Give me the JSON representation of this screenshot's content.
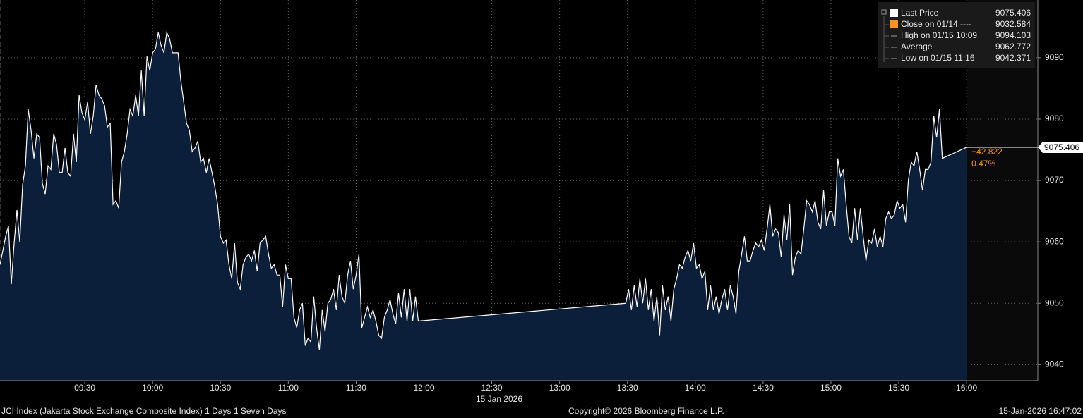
{
  "chart_data": {
    "type": "area",
    "x": [
      532.5,
      533.75,
      535,
      536.25,
      537.5,
      538.75,
      540,
      541.25,
      542.5,
      543.75,
      545,
      546.25,
      547.5,
      548.75,
      550,
      551.25,
      552.5,
      553.75,
      555,
      556.25,
      557.5,
      558.75,
      560,
      561.25,
      562.5,
      563.75,
      565,
      566.25,
      567.5,
      568.75,
      570,
      571.25,
      572.5,
      573.75,
      575,
      576.25,
      577.5,
      578.75,
      580,
      581.25,
      582.5,
      583.75,
      585,
      586.25,
      587.5,
      588.75,
      590,
      591.25,
      592.5,
      593.75,
      595,
      596.25,
      597.5,
      598.75,
      600,
      601.25,
      602.5,
      603.75,
      605,
      606.25,
      607.5,
      608.75,
      610,
      611.25,
      612.5,
      613.75,
      615,
      616.25,
      617.5,
      618.75,
      620,
      621.25,
      622.5,
      623.75,
      625,
      626.25,
      627.5,
      628.75,
      630,
      631.25,
      632.5,
      633.75,
      635,
      636.25,
      637.5,
      638.75,
      640,
      641.25,
      642.5,
      643.75,
      645,
      646.25,
      647.5,
      648.75,
      650,
      651.25,
      652.5,
      653.75,
      655,
      656.25,
      657.5,
      658.75,
      660,
      661.25,
      662.5,
      663.75,
      665,
      666.25,
      667.5,
      668.75,
      670,
      671.25,
      672.5,
      673.75,
      675,
      676.25,
      677.5,
      678.75,
      680,
      681.25,
      682.5,
      683.75,
      685,
      686.25,
      687.5,
      688.75,
      690,
      691.25,
      692.5,
      693.75,
      695,
      696.25,
      697.5,
      698.75,
      700,
      701.25,
      702.5,
      703.75,
      705,
      706.25,
      707.5,
      708.75,
      710,
      711.25,
      712.5,
      713.75,
      715,
      716.25,
      717.5,
      809.25,
      810.5,
      811.75,
      813,
      814.25,
      815.5,
      816.75,
      818,
      819.25,
      820.5,
      821.75,
      823,
      824.25,
      825.5,
      826.75,
      828,
      829.25,
      830.5,
      831.75,
      833,
      834.25,
      835.5,
      836.75,
      838,
      839.25,
      840.5,
      841.75,
      843,
      844.25,
      845.5,
      846.75,
      848,
      849.25,
      850.5,
      851.75,
      853,
      854.25,
      855.5,
      856.75,
      858,
      859.25,
      860.5,
      861.75,
      863,
      864.25,
      865.5,
      866.75,
      868,
      869.25,
      870.5,
      871.75,
      873,
      874.25,
      875.5,
      876.75,
      878,
      879.25,
      880.5,
      881.75,
      883,
      884.25,
      885.5,
      886.75,
      888,
      889.25,
      890.5,
      891.75,
      893,
      894.25,
      895.5,
      896.75,
      898,
      899.25,
      900.5,
      901.75,
      903,
      904.25,
      905.5,
      906.75,
      908,
      909.25,
      910.5,
      911.75,
      913,
      914.25,
      915.5,
      916.75,
      918,
      919.25,
      920.5,
      921.75,
      923,
      924.25,
      925.5,
      926.75,
      928,
      929.25,
      930.5,
      931.75,
      933,
      934.25,
      935.5,
      936.75,
      938,
      939.25,
      940.5,
      941.75,
      943,
      944.25,
      945.5,
      946.75,
      948,
      949.25,
      960
    ],
    "series": [
      {
        "name": "Last Price",
        "color": "#ffffff",
        "fill": "#0b1f3b",
        "values": [
          9056.3,
          9058.6,
          9060.9,
          9062.6,
          9053.1,
          9059.8,
          9065.2,
          9060.0,
          9069.3,
          9072.4,
          9081.6,
          9078.2,
          9073.6,
          9077.6,
          9077.0,
          9069.5,
          9067.8,
          9072.4,
          9071.8,
          9077.6,
          9075.9,
          9071.3,
          9071.3,
          9075.3,
          9071.3,
          9070.7,
          9077.6,
          9073.0,
          9083.9,
          9081.0,
          9079.9,
          9082.8,
          9077.6,
          9080.5,
          9085.6,
          9083.9,
          9083.3,
          9082.2,
          9078.7,
          9079.3,
          9066.1,
          9066.7,
          9065.5,
          9073.0,
          9074.7,
          9077.6,
          9081.6,
          9080.5,
          9083.9,
          9080.5,
          9087.9,
          9080.5,
          9090.2,
          9087.9,
          9090.8,
          9091.4,
          9094.1,
          9092.0,
          9090.8,
          9094.1,
          9093.1,
          9090.8,
          9090.8,
          9090.8,
          9086.2,
          9082.8,
          9079.3,
          9078.2,
          9074.7,
          9075.3,
          9076.4,
          9073.0,
          9073.6,
          9071.3,
          9073.6,
          9071.3,
          9069.0,
          9066.1,
          9060.9,
          9059.8,
          9060.3,
          9056.3,
          9054.0,
          9059.8,
          9053.4,
          9052.3,
          9056.3,
          9057.5,
          9058.0,
          9056.9,
          9058.6,
          9055.2,
          9059.8,
          9060.3,
          9060.9,
          9058.0,
          9055.7,
          9056.3,
          9054.6,
          9054.6,
          9049.4,
          9056.3,
          9054.0,
          9054.0,
          9047.7,
          9046.0,
          9048.9,
          9050.0,
          9043.1,
          9044.3,
          9043.7,
          9051.1,
          9046.0,
          9042.4,
          9048.9,
          9045.4,
          9050.0,
          9050.6,
          9052.3,
          9048.9,
          9054.6,
          9051.1,
          9050.0,
          9054.6,
          9056.9,
          9052.3,
          9054.6,
          9058.0,
          9046.0,
          9047.7,
          9049.4,
          9047.7,
          9048.9,
          9047.1,
          9044.8,
          9044.3,
          9047.7,
          9048.9,
          9050.6,
          9048.3,
          9046.6,
          9051.7,
          9047.7,
          9052.3,
          9047.1,
          9052.3,
          9047.1,
          9051.1,
          9047.1,
          9050.0,
          9052.3,
          9048.9,
          9052.9,
          9049.4,
          9054.0,
          9050.0,
          9054.0,
          9048.9,
          9052.3,
          9047.1,
          9051.1,
          9044.8,
          9052.9,
          9048.9,
          9051.1,
          9047.1,
          9052.3,
          9054.0,
          9056.3,
          9055.7,
          9057.5,
          9058.6,
          9056.9,
          9059.8,
          9055.7,
          9056.3,
          9054.0,
          9055.2,
          9048.9,
          9052.9,
          9048.9,
          9051.1,
          9048.3,
          9050.6,
          9052.3,
          9048.9,
          9052.9,
          9051.1,
          9048.3,
          9055.2,
          9058.0,
          9060.9,
          9056.9,
          9056.9,
          9058.6,
          9059.8,
          9059.2,
          9060.3,
          9058.6,
          9062.1,
          9066.1,
          9060.9,
          9062.1,
          9061.5,
          9057.5,
          9064.4,
          9060.3,
          9066.1,
          9054.6,
          9057.5,
          9058.6,
          9058.0,
          9062.1,
          9066.7,
          9066.1,
          9064.9,
          9066.7,
          9063.2,
          9062.1,
          9068.4,
          9062.6,
          9064.9,
          9064.9,
          9062.6,
          9073.6,
          9070.7,
          9071.8,
          9066.1,
          9060.9,
          9059.8,
          9065.5,
          9060.3,
          9065.5,
          9060.9,
          9056.9,
          9060.3,
          9059.8,
          9062.1,
          9059.2,
          9060.9,
          9059.2,
          9063.8,
          9064.9,
          9063.8,
          9064.4,
          9066.7,
          9065.5,
          9066.1,
          9063.2,
          9070.1,
          9073.0,
          9072.4,
          9074.7,
          9071.8,
          9068.4,
          9071.8,
          9071.8,
          9073.0,
          9080.5,
          9077.0,
          9081.6,
          9073.6,
          9075.406
        ]
      }
    ],
    "xlim": [
      532.5,
      991.5
    ],
    "ylim": [
      9037.4,
      9099.4
    ],
    "xticks": [
      {
        "value": 570,
        "label": "09:30"
      },
      {
        "value": 600,
        "label": "10:00"
      },
      {
        "value": 630,
        "label": "10:30"
      },
      {
        "value": 660,
        "label": "11:00"
      },
      {
        "value": 690,
        "label": "11:30"
      },
      {
        "value": 720,
        "label": "12:00"
      },
      {
        "value": 750,
        "label": "12:30"
      },
      {
        "value": 780,
        "label": "13:00"
      },
      {
        "value": 810,
        "label": "13:30"
      },
      {
        "value": 840,
        "label": "14:00"
      },
      {
        "value": 870,
        "label": "14:30"
      },
      {
        "value": 900,
        "label": "15:00"
      },
      {
        "value": 930,
        "label": "15:30"
      },
      {
        "value": 960,
        "label": "16:00"
      }
    ],
    "yticks": [
      9040,
      9050,
      9060,
      9070,
      9080,
      9090
    ],
    "grid": true,
    "date_label": "15 Jan 2026",
    "change_label": "+42.822",
    "change_pct_label": "0.47%",
    "annotation_color": "#f7941d",
    "legend_stats": [
      {
        "label": "Close on 01/14 ----",
        "value": 9032.584,
        "color": "#f7941d"
      },
      {
        "label": "High on 01/15 10:09",
        "value": 9094.103,
        "color": "#9a9a9a"
      },
      {
        "label": "Average",
        "value": 9062.772,
        "color": "#9a9a9a"
      },
      {
        "label": "Low on 01/15 11:16",
        "value": 9042.371,
        "color": "#9a9a9a"
      }
    ],
    "footer_left": "JCI Index (Jakarta Stock Exchange Composite Index) 1 Days 1 Seven Days",
    "footer_center": "Copyright© 2026 Bloomberg Finance L.P.",
    "footer_right": "15-Jan-2026 16:47:02"
  }
}
